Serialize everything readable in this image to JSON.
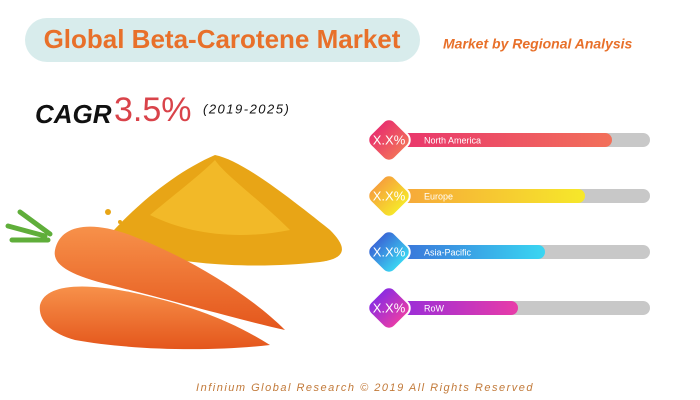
{
  "header": {
    "title": "Global Beta-Carotene Market",
    "subtitle": "Market by Regional Analysis"
  },
  "cagr": {
    "label": "CAGR",
    "value": "3.5%",
    "period": "(2019-2025)"
  },
  "regions": [
    {
      "badge": "X.X%",
      "name": "North America"
    },
    {
      "badge": "X.X%",
      "name": "Europe"
    },
    {
      "badge": "X.X%",
      "name": "Asia-Pacific"
    },
    {
      "badge": "X.X%",
      "name": "RoW"
    }
  ],
  "footer": "Infinium Global Research © 2019 All Rights Reserved"
}
